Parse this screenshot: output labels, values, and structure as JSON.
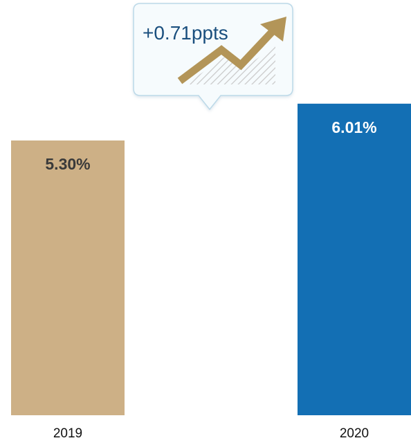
{
  "chart_data": {
    "type": "bar",
    "categories": [
      "2019",
      "2020"
    ],
    "values": [
      5.3,
      6.01
    ],
    "data_labels": [
      "5.30%",
      "6.01%"
    ],
    "colors": [
      "#cdb086",
      "#136fb4"
    ],
    "label_colors": [
      "#3a3a3a",
      "#ffffff"
    ],
    "grid": false,
    "legend": "none",
    "annotation": {
      "text": "+0.71ppts",
      "icon": "trend-up-arrow-icon",
      "accent": "#b39558"
    }
  }
}
